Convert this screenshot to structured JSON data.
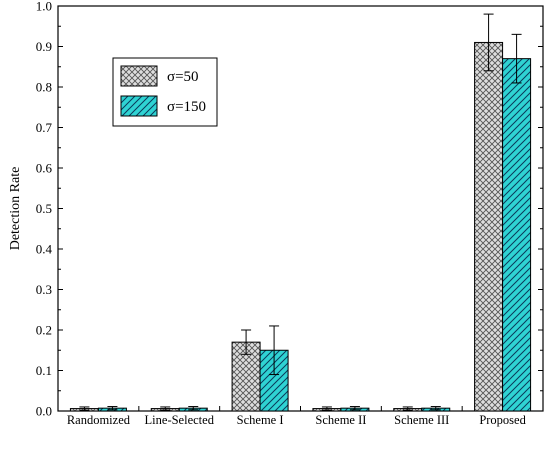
{
  "chart_data": {
    "type": "bar",
    "xlabel": "",
    "ylabel": "Detection Rate",
    "ylim": [
      0,
      1.0
    ],
    "yticks": [
      0.0,
      0.1,
      0.2,
      0.3,
      0.4,
      0.5,
      0.6,
      0.7,
      0.8,
      0.9,
      1.0
    ],
    "ytick_labels": [
      "0.0",
      "0.1",
      "0.2",
      "0.3",
      "0.4",
      "0.5",
      "0.6",
      "0.7",
      "0.8",
      "0.9",
      "1.0"
    ],
    "categories": [
      "Randomized",
      "Line-Selected",
      "Scheme I",
      "Scheme II",
      "Scheme III",
      "Proposed"
    ],
    "series": [
      {
        "name": "σ=50",
        "values": [
          0.006,
          0.006,
          0.17,
          0.006,
          0.006,
          0.91
        ],
        "errors": [
          0.004,
          0.004,
          0.03,
          0.004,
          0.004,
          0.07
        ],
        "fill": "crosshatch-gray"
      },
      {
        "name": "σ=150",
        "values": [
          0.007,
          0.007,
          0.15,
          0.007,
          0.007,
          0.87
        ],
        "errors": [
          0.004,
          0.004,
          0.06,
          0.004,
          0.004,
          0.06
        ],
        "fill": "diagonal-cyan"
      }
    ],
    "legend_position": "top-left",
    "grid": false,
    "colors": {
      "series_1": "#d9d9d9",
      "series_2": "#33d6d6",
      "frame": "#000000"
    }
  }
}
